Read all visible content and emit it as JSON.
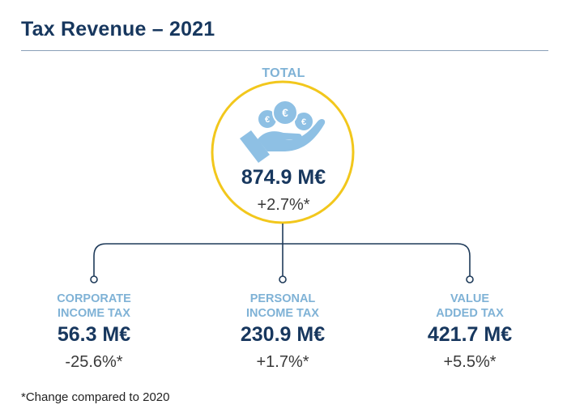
{
  "title": "Tax Revenue – 2021",
  "total": {
    "label": "TOTAL",
    "value": "874.9 M€",
    "change": "+2.7%*"
  },
  "categories": [
    {
      "label": "CORPORATE\nINCOME TAX",
      "value": "56.3 M€",
      "change": "-25.6%*"
    },
    {
      "label": "PERSONAL\nINCOME TAX",
      "value": "230.9 M€",
      "change": "+1.7%*"
    },
    {
      "label": "VALUE\nADDED TAX",
      "value": "421.7 M€",
      "change": "+5.5%*"
    }
  ],
  "icons": {
    "total": "hand-holding-euro-coins-icon",
    "coin_symbol": "€"
  },
  "colors": {
    "title": "#17375e",
    "label": "#7fb2d6",
    "circle_ring": "#f2c71c",
    "connector": "#1f3b5a",
    "icon": "#8ec0e4"
  },
  "footnote": "*Change compared to 2020"
}
